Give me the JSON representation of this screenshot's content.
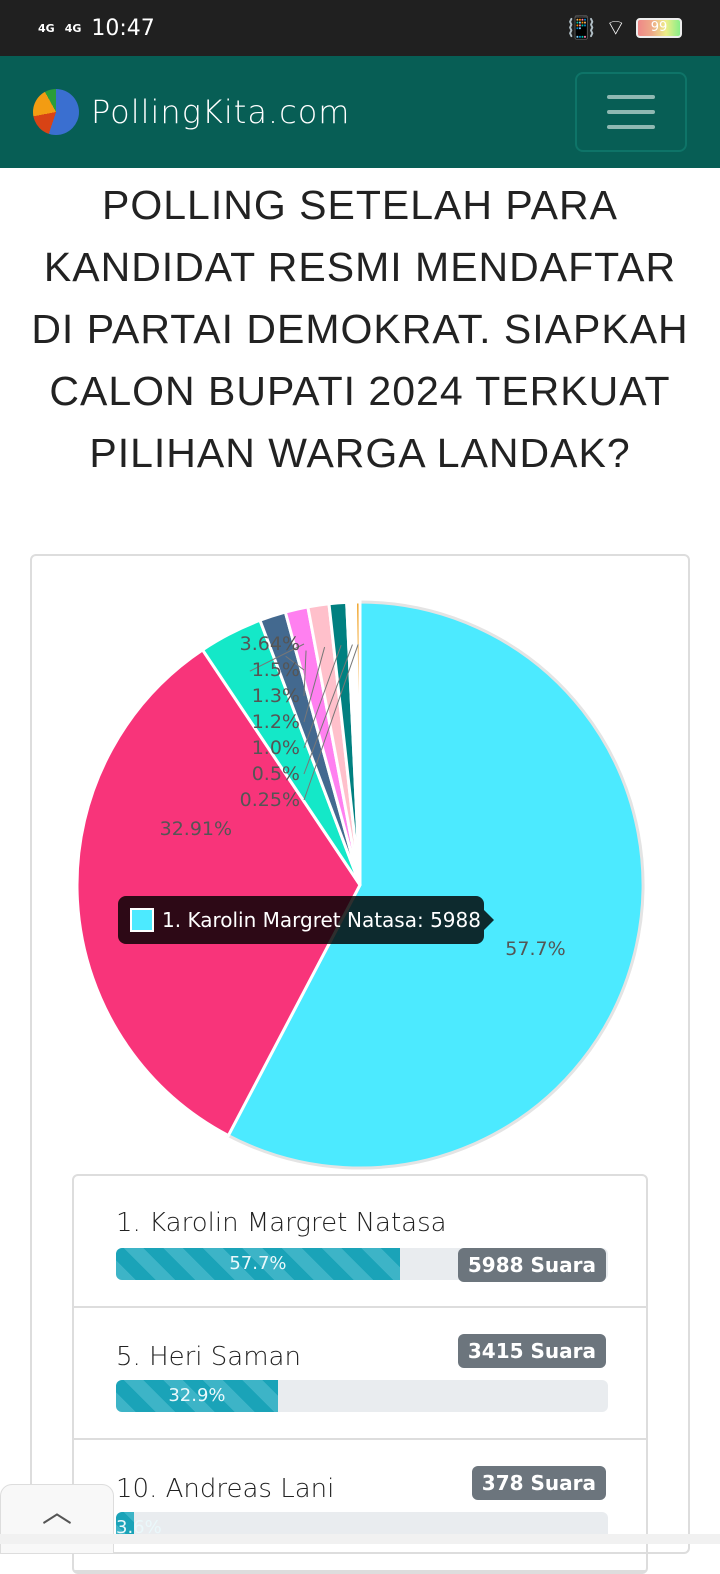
{
  "status": {
    "network1": "4G",
    "network2": "4G",
    "time": "10:47",
    "battery": "99"
  },
  "nav": {
    "brand": "PollingKita.com",
    "menu_icon": "hamburger-icon"
  },
  "title": "POLLING SETELAH PARA KANDIDAT RESMI MENDAFTAR DI PARTAI DEMOKRAT. SIAPKAH CALON BUPATI 2024 TERKUAT PILIHAN WARGA LANDAK?",
  "chart_data": {
    "type": "pie",
    "slices": [
      {
        "label": "57.7%",
        "value": 57.7,
        "color": "#4ceaff"
      },
      {
        "label": "32.91%",
        "value": 32.91,
        "color": "#f8347a"
      },
      {
        "label": "3.64%",
        "value": 3.64,
        "color": "#14e8c8"
      },
      {
        "label": "1.5%",
        "value": 1.5,
        "color": "#43698f"
      },
      {
        "label": "1.3%",
        "value": 1.3,
        "color": "#ff80f0"
      },
      {
        "label": "1.2%",
        "value": 1.2,
        "color": "#ffc0cb"
      },
      {
        "label": "1.0%",
        "value": 1.0,
        "color": "#008080"
      },
      {
        "label": "0.5%",
        "value": 0.5,
        "color": "#ffffff"
      },
      {
        "label": "0.25%",
        "value": 0.25,
        "color": "#f0a020"
      }
    ],
    "tooltip": "1. Karolin Margret Natasa: 5988"
  },
  "candidates": [
    {
      "name": "1. Karolin Margret Natasa",
      "percent": 57.7,
      "percent_label": "57.7%",
      "votes": "5988 Suara"
    },
    {
      "name": "5. Heri Saman",
      "percent": 32.9,
      "percent_label": "32.9%",
      "votes": "3415 Suara"
    },
    {
      "name": "10. Andreas Lani",
      "percent": 3.6,
      "percent_label": "3.6%",
      "votes": "378 Suara"
    }
  ],
  "scroll_top_icon": "chevron-up-icon"
}
